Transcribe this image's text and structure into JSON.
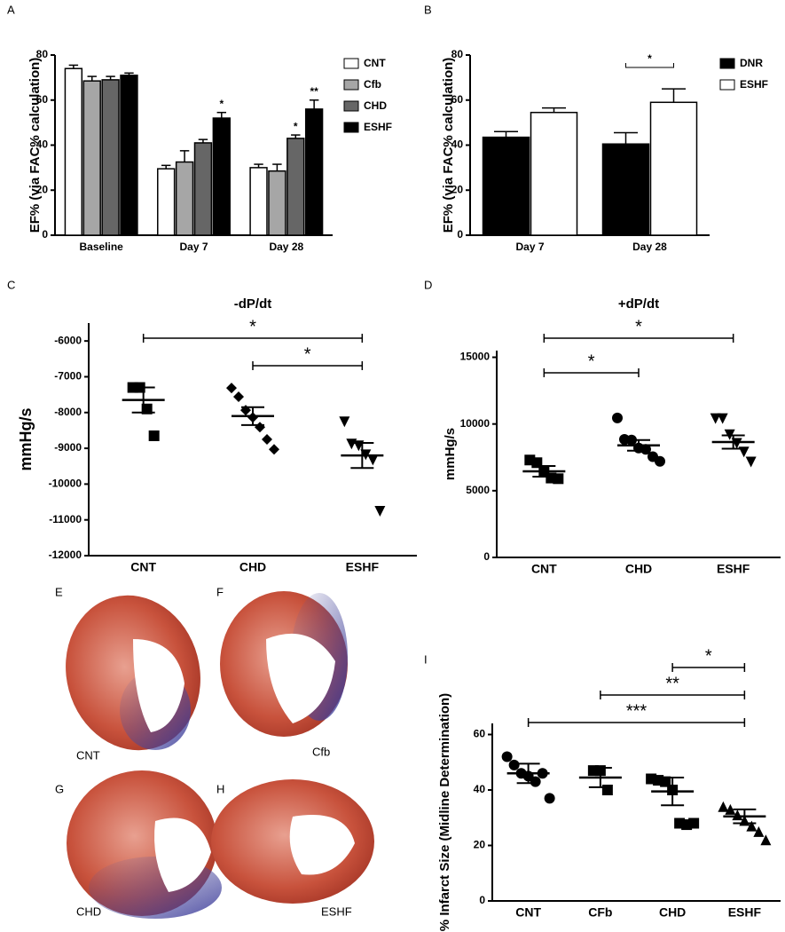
{
  "chart_data": [
    {
      "panel": "A",
      "type": "bar",
      "ylabel": "EF% (via FAC% calculation)",
      "categories": [
        "Baseline",
        "Day 7",
        "Day 28"
      ],
      "series": [
        {
          "name": "CNT",
          "color": "#ffffff",
          "values": [
            74,
            29.5,
            30
          ],
          "errors": [
            1.5,
            1.5,
            1.5
          ]
        },
        {
          "name": "Cfb",
          "color": "#a6a6a6",
          "values": [
            68.5,
            32.5,
            28.5
          ],
          "errors": [
            2,
            5,
            3
          ]
        },
        {
          "name": "CHD",
          "color": "#666666",
          "values": [
            69,
            41,
            43
          ],
          "errors": [
            1.5,
            1.5,
            1.5
          ]
        },
        {
          "name": "ESHF",
          "color": "#000000",
          "values": [
            71,
            52,
            56
          ],
          "errors": [
            1,
            2.5,
            4
          ]
        }
      ],
      "ylim": [
        0,
        80
      ],
      "yticks": [
        0,
        20,
        40,
        60,
        80
      ],
      "annotations": [
        {
          "series": 3,
          "category": 1,
          "text": "*"
        },
        {
          "series": 2,
          "category": 2,
          "text": "*"
        },
        {
          "series": 3,
          "category": 2,
          "text": "**"
        }
      ]
    },
    {
      "panel": "B",
      "type": "bar",
      "ylabel": "EF% (via FAC% calculation)",
      "categories": [
        "Day 7",
        "Day 28"
      ],
      "series": [
        {
          "name": "DNR",
          "color": "#000000",
          "values": [
            43.5,
            40.5
          ],
          "errors": [
            2.5,
            5
          ]
        },
        {
          "name": "ESHF",
          "color": "#ffffff",
          "values": [
            54.5,
            59
          ],
          "errors": [
            2,
            6
          ]
        }
      ],
      "ylim": [
        0,
        80
      ],
      "yticks": [
        0,
        20,
        40,
        60,
        80
      ],
      "series_brackets": [
        {
          "category": 1,
          "from": 0,
          "to": 1,
          "text": "*"
        }
      ]
    },
    {
      "panel": "C",
      "type": "dot",
      "title": "-dP/dt",
      "ylabel": "mmHg/s",
      "categories": [
        "CNT",
        "CHD",
        "ESHF"
      ],
      "markers": [
        "square",
        "diamond",
        "triangle-down"
      ],
      "points": [
        [
          -7300,
          -7300,
          -7900,
          -8650
        ],
        [
          -7315,
          -7560,
          -7935,
          -8135,
          -8410,
          -8750,
          -9030
        ],
        [
          -8260,
          -8880,
          -8930,
          -9180,
          -9330,
          -10760
        ]
      ],
      "means": [
        -7650,
        -8100,
        -9200
      ],
      "errors": [
        350,
        250,
        350
      ],
      "ylim": [
        -12000,
        -5500
      ],
      "yticks": [
        -6000,
        -7000,
        -8000,
        -9000,
        -10000,
        -11000,
        -12000
      ],
      "brackets": [
        {
          "from": 0,
          "to": 2,
          "text": "*"
        },
        {
          "from": 1,
          "to": 2,
          "text": "*"
        }
      ]
    },
    {
      "panel": "D",
      "type": "dot",
      "title": "+dP/dt",
      "ylabel": "mmHg/s",
      "categories": [
        "CNT",
        "CHD",
        "ESHF"
      ],
      "markers": [
        "square",
        "circle",
        "triangle-down"
      ],
      "points": [
        [
          7300,
          7100,
          6500,
          5950,
          5900
        ],
        [
          10450,
          8850,
          8800,
          8200,
          8100,
          7550,
          7200
        ],
        [
          10400,
          10400,
          9200,
          8550,
          7900,
          7150
        ]
      ],
      "means": [
        6450,
        8400,
        8650
      ],
      "errors": [
        400,
        400,
        500
      ],
      "ylim": [
        0,
        15500
      ],
      "yticks": [
        0,
        5000,
        10000,
        15000
      ],
      "brackets": [
        {
          "from": 0,
          "to": 2,
          "text": "*"
        },
        {
          "from": 0,
          "to": 1,
          "text": "*"
        }
      ]
    },
    {
      "panel": "I",
      "type": "dot",
      "ylabel": "% Infarct Size (Midline Determination)",
      "categories": [
        "CNT",
        "CFb",
        "CHD",
        "ESHF"
      ],
      "markers": [
        "circle",
        "square",
        "square",
        "triangle"
      ],
      "points": [
        [
          52,
          49,
          46,
          45,
          43,
          46,
          37
        ],
        [
          47,
          47,
          40
        ],
        [
          44,
          43.5,
          43,
          40,
          28,
          27.5,
          28
        ],
        [
          34,
          33,
          31,
          29,
          27,
          25,
          22
        ]
      ],
      "means": [
        46,
        44.5,
        39.5,
        30.5
      ],
      "errors": [
        3.5,
        3.5,
        5,
        2.5
      ],
      "ylim": [
        0,
        64
      ],
      "yticks": [
        0,
        20,
        40,
        60
      ],
      "brackets": [
        {
          "from": 2,
          "to": 3,
          "text": "*"
        },
        {
          "from": 1,
          "to": 3,
          "text": "**"
        },
        {
          "from": 0,
          "to": 3,
          "text": "***"
        }
      ]
    }
  ],
  "photos": [
    {
      "panel": "E",
      "caption": "CNT"
    },
    {
      "panel": "F",
      "caption": "Cfb"
    },
    {
      "panel": "G",
      "caption": "CHD"
    },
    {
      "panel": "H",
      "caption": "ESHF"
    }
  ]
}
